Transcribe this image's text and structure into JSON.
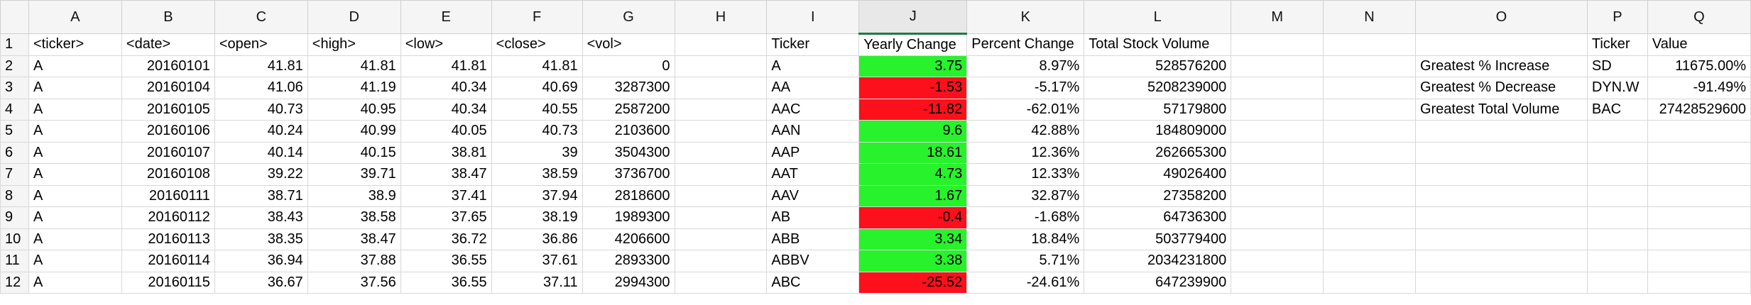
{
  "colors": {
    "positive_fill": "#27f22b",
    "negative_fill": "#fb101c",
    "header_bg": "#f5f5f5",
    "selected_column_border": "#1f7a45"
  },
  "columns": [
    "A",
    "B",
    "C",
    "D",
    "E",
    "F",
    "G",
    "H",
    "I",
    "J",
    "K",
    "L",
    "M",
    "N",
    "O",
    "P",
    "Q"
  ],
  "selected_column": "J",
  "rows": [
    {
      "row": "1",
      "A": "<ticker>",
      "B": "<date>",
      "C": "<open>",
      "D": "<high>",
      "E": "<low>",
      "F": "<close>",
      "G": "<vol>",
      "I": "Ticker",
      "J": "Yearly Change",
      "K": "Percent Change",
      "L": "Total Stock Volume",
      "O": "",
      "P": "Ticker",
      "Q": "Value"
    },
    {
      "row": "2",
      "A": "A",
      "B": "20160101",
      "C": "41.81",
      "D": "41.81",
      "E": "41.81",
      "F": "41.81",
      "G": "0",
      "I": "A",
      "J": "3.75",
      "K": "8.97%",
      "L": "528576200",
      "O": "Greatest % Increase",
      "P": "SD",
      "Q": "11675.00%"
    },
    {
      "row": "3",
      "A": "A",
      "B": "20160104",
      "C": "41.06",
      "D": "41.19",
      "E": "40.34",
      "F": "40.69",
      "G": "3287300",
      "I": "AA",
      "J": "-1.53",
      "K": "-5.17%",
      "L": "5208239000",
      "O": "Greatest % Decrease",
      "P": "DYN.W",
      "Q": "-91.49%"
    },
    {
      "row": "4",
      "A": "A",
      "B": "20160105",
      "C": "40.73",
      "D": "40.95",
      "E": "40.34",
      "F": "40.55",
      "G": "2587200",
      "I": "AAC",
      "J": "-11.82",
      "K": "-62.01%",
      "L": "57179800",
      "O": "Greatest Total Volume",
      "P": "BAC",
      "Q": "27428529600"
    },
    {
      "row": "5",
      "A": "A",
      "B": "20160106",
      "C": "40.24",
      "D": "40.99",
      "E": "40.05",
      "F": "40.73",
      "G": "2103600",
      "I": "AAN",
      "J": "9.6",
      "K": "42.88%",
      "L": "184809000"
    },
    {
      "row": "6",
      "A": "A",
      "B": "20160107",
      "C": "40.14",
      "D": "40.15",
      "E": "38.81",
      "F": "39",
      "G": "3504300",
      "I": "AAP",
      "J": "18.61",
      "K": "12.36%",
      "L": "262665300"
    },
    {
      "row": "7",
      "A": "A",
      "B": "20160108",
      "C": "39.22",
      "D": "39.71",
      "E": "38.47",
      "F": "38.59",
      "G": "3736700",
      "I": "AAT",
      "J": "4.73",
      "K": "12.33%",
      "L": "49026400"
    },
    {
      "row": "8",
      "A": "A",
      "B": "20160111",
      "C": "38.71",
      "D": "38.9",
      "E": "37.41",
      "F": "37.94",
      "G": "2818600",
      "I": "AAV",
      "J": "1.67",
      "K": "32.87%",
      "L": "27358200"
    },
    {
      "row": "9",
      "A": "A",
      "B": "20160112",
      "C": "38.43",
      "D": "38.58",
      "E": "37.65",
      "F": "38.19",
      "G": "1989300",
      "I": "AB",
      "J": "-0.4",
      "K": "-1.68%",
      "L": "64736300"
    },
    {
      "row": "10",
      "A": "A",
      "B": "20160113",
      "C": "38.35",
      "D": "38.47",
      "E": "36.72",
      "F": "36.86",
      "G": "4206600",
      "I": "ABB",
      "J": "3.34",
      "K": "18.84%",
      "L": "503779400"
    },
    {
      "row": "11",
      "A": "A",
      "B": "20160114",
      "C": "36.94",
      "D": "37.88",
      "E": "36.55",
      "F": "37.61",
      "G": "2893300",
      "I": "ABBV",
      "J": "3.38",
      "K": "5.71%",
      "L": "2034231800"
    },
    {
      "row": "12",
      "A": "A",
      "B": "20160115",
      "C": "36.67",
      "D": "37.56",
      "E": "36.55",
      "F": "37.11",
      "G": "2994300",
      "I": "ABC",
      "J": "-25.52",
      "K": "-24.61%",
      "L": "647239900"
    }
  ]
}
